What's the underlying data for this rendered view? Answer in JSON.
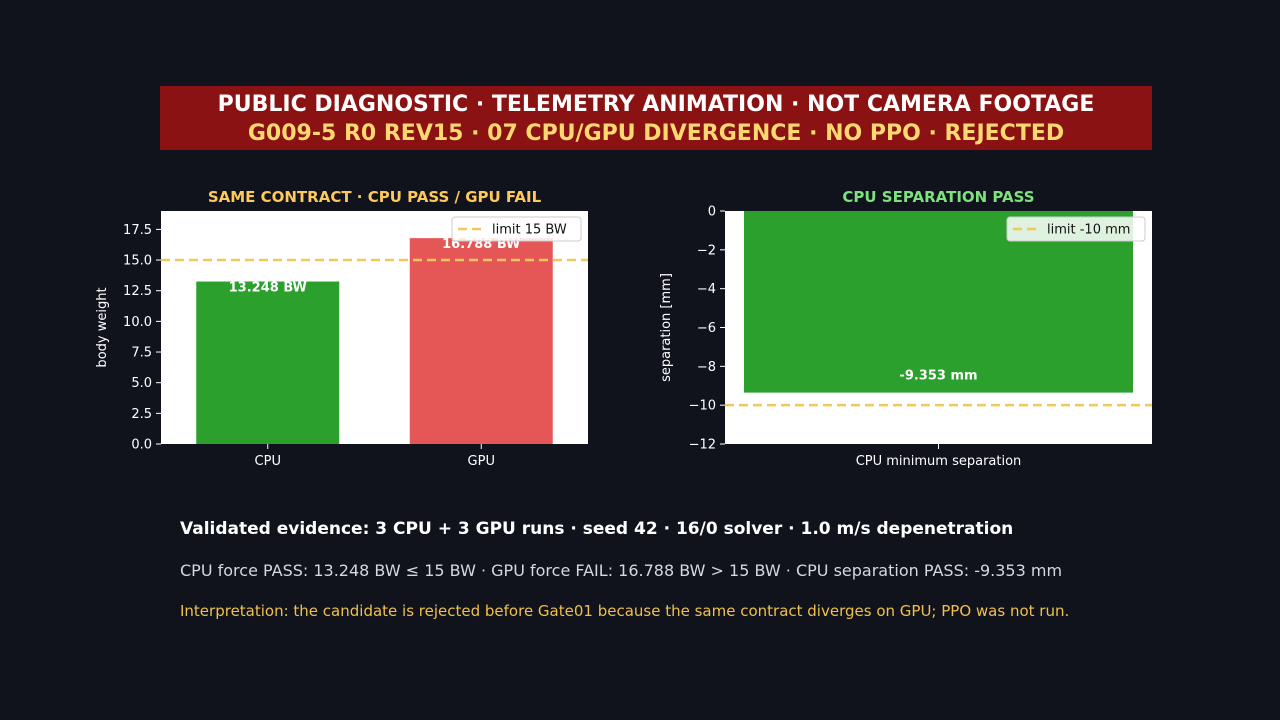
{
  "banner": {
    "line1": "PUBLIC DIAGNOSTIC · TELEMETRY ANIMATION · NOT CAMERA FOOTAGE",
    "line2": "G009-5 R0 REV15 · 07 CPU/GPU DIVERGENCE · NO PPO · REJECTED"
  },
  "chart_data": [
    {
      "type": "bar",
      "title": "SAME CONTRACT · CPU PASS / GPU FAIL",
      "categories": [
        "CPU",
        "GPU"
      ],
      "values": [
        13.248,
        16.788
      ],
      "bar_labels": [
        "13.248 BW",
        "16.788 BW"
      ],
      "bar_colors": [
        "#2ca02c",
        "#e55757"
      ],
      "ylabel": "body weight",
      "ylim": [
        0,
        19
      ],
      "yticks": [
        0,
        2.5,
        5,
        7.5,
        10,
        12.5,
        15,
        17.5
      ],
      "ytick_labels": [
        "0.0",
        "2.5",
        "5.0",
        "7.5",
        "10.0",
        "12.5",
        "15.0",
        "17.5"
      ],
      "limit": 15,
      "legend": "limit 15 BW",
      "legend_placement": "top-right",
      "title_color": "#ffc95c",
      "grid": false
    },
    {
      "type": "bar",
      "title": "CPU SEPARATION PASS",
      "categories": [
        "CPU minimum separation"
      ],
      "values": [
        -9.353
      ],
      "bar_labels": [
        "-9.353 mm"
      ],
      "bar_colors": [
        "#2ca02c"
      ],
      "ylabel": "separation [mm]",
      "ylim": [
        -12,
        0
      ],
      "yticks": [
        0,
        -2,
        -4,
        -6,
        -8,
        -10,
        -12
      ],
      "ytick_labels": [
        "0",
        "−2",
        "−4",
        "−6",
        "−8",
        "−10",
        "−12"
      ],
      "limit": -10,
      "legend": "limit -10 mm",
      "legend_placement": "top-right",
      "title_color": "#7fe07f",
      "grid": false
    }
  ],
  "colors": {
    "limit_line": "#f2c75c",
    "background": "#10131b",
    "banner": "#8b1212"
  },
  "summary": {
    "evidence": "Validated evidence: 3 CPU + 3 GPU runs · seed 42 · 16/0 solver · 1.0 m/s depenetration",
    "metrics": "CPU force PASS: 13.248 BW ≤ 15 BW · GPU force FAIL: 16.788 BW > 15 BW · CPU separation PASS: -9.353 mm",
    "interpretation": "Interpretation: the candidate is rejected before Gate01 because the same contract diverges on GPU; PPO was not run."
  }
}
